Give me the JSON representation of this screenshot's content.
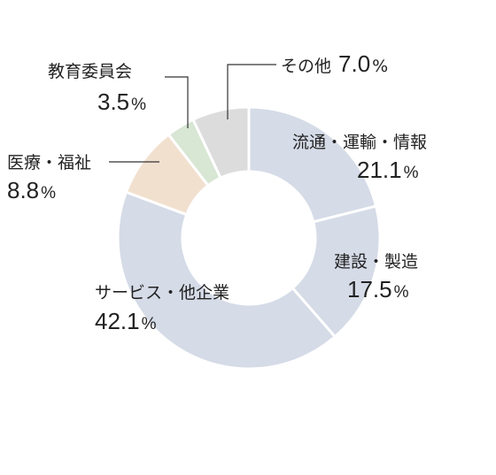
{
  "chart_data": {
    "type": "donut",
    "title": "",
    "percent_unit": "%",
    "slices": [
      {
        "label": "流通・運輸・情報",
        "value": 21.1,
        "display": "21.1",
        "color": "#d5dbe7"
      },
      {
        "label": "建設・製造",
        "value": 17.5,
        "display": "17.5",
        "color": "#d5dbe7"
      },
      {
        "label": "サービス・他企業",
        "value": 42.1,
        "display": "42.1",
        "color": "#d5dbe7"
      },
      {
        "label": "医療・福祉",
        "value": 8.8,
        "display": "8.8",
        "color": "#f2e0cf"
      },
      {
        "label": "教育委員会",
        "value": 3.5,
        "display": "3.5",
        "color": "#d8e6d4"
      },
      {
        "label": "その他",
        "value": 7.0,
        "display": "7.0",
        "color": "#dcdcdc"
      }
    ]
  }
}
